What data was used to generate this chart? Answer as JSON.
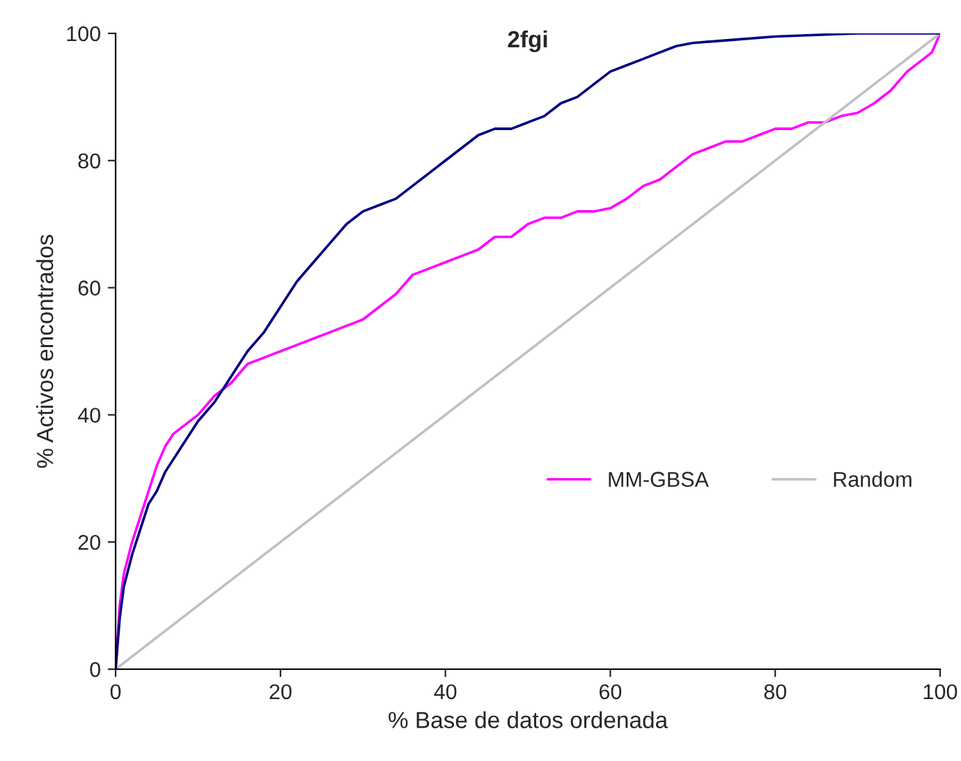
{
  "chart_data": {
    "type": "line",
    "title": "2fgi",
    "xlabel": "% Base de datos ordenada",
    "ylabel": "% Activos encontrados",
    "xlim": [
      0,
      100
    ],
    "ylim": [
      0,
      100
    ],
    "xticks": [
      0,
      20,
      40,
      60,
      80,
      100
    ],
    "yticks": [
      0,
      20,
      40,
      60,
      80,
      100
    ],
    "grid": false,
    "legend": "bottom right",
    "marker": "none",
    "line_style": "solid",
    "series": [
      {
        "name": "MM-GBSA",
        "color": "#ff00ff",
        "x": [
          0,
          0.5,
          1,
          2,
          3,
          4,
          5,
          6,
          7,
          8,
          10,
          12,
          14,
          16,
          18,
          20,
          22,
          24,
          26,
          28,
          30,
          32,
          34,
          36,
          38,
          40,
          42,
          44,
          46,
          48,
          50,
          52,
          54,
          56,
          58,
          60,
          62,
          64,
          66,
          68,
          70,
          72,
          74,
          76,
          78,
          80,
          82,
          84,
          86,
          88,
          90,
          92,
          94,
          96,
          98,
          99,
          100
        ],
        "values": [
          0,
          10,
          15,
          20,
          24,
          28,
          32,
          35,
          37,
          38,
          40,
          43,
          45,
          48,
          49,
          50,
          51,
          52,
          53,
          54,
          55,
          57,
          59,
          62,
          63,
          64,
          65,
          66,
          68,
          68,
          70,
          71,
          71,
          72,
          72,
          72.5,
          74,
          76,
          77,
          79,
          81,
          82,
          83,
          83,
          84,
          85,
          85,
          86,
          86,
          87,
          87.5,
          89,
          91,
          94,
          96,
          97,
          100
        ]
      },
      {
        "name": "Random",
        "color": "#c0c0c0",
        "x": [
          0,
          100
        ],
        "values": [
          0,
          100
        ]
      },
      {
        "color": "#000080",
        "x": [
          0,
          0.5,
          1,
          2,
          3,
          4,
          5,
          6,
          7,
          8,
          9,
          10,
          12,
          14,
          15,
          16,
          18,
          20,
          22,
          24,
          26,
          28,
          30,
          32,
          34,
          36,
          38,
          40,
          42,
          44,
          46,
          48,
          50,
          52,
          54,
          56,
          58,
          60,
          62,
          64,
          66,
          68,
          70,
          75,
          80,
          90,
          100
        ],
        "values": [
          0,
          8,
          13,
          18,
          22,
          26,
          28,
          31,
          33,
          35,
          37,
          39,
          42,
          46,
          48,
          50,
          53,
          57,
          61,
          64,
          67,
          70,
          72,
          73,
          74,
          76,
          78,
          80,
          82,
          84,
          85,
          85,
          86,
          87,
          89,
          90,
          92,
          94,
          95,
          96,
          97,
          98,
          98.5,
          99,
          99.5,
          100,
          100
        ]
      }
    ]
  }
}
